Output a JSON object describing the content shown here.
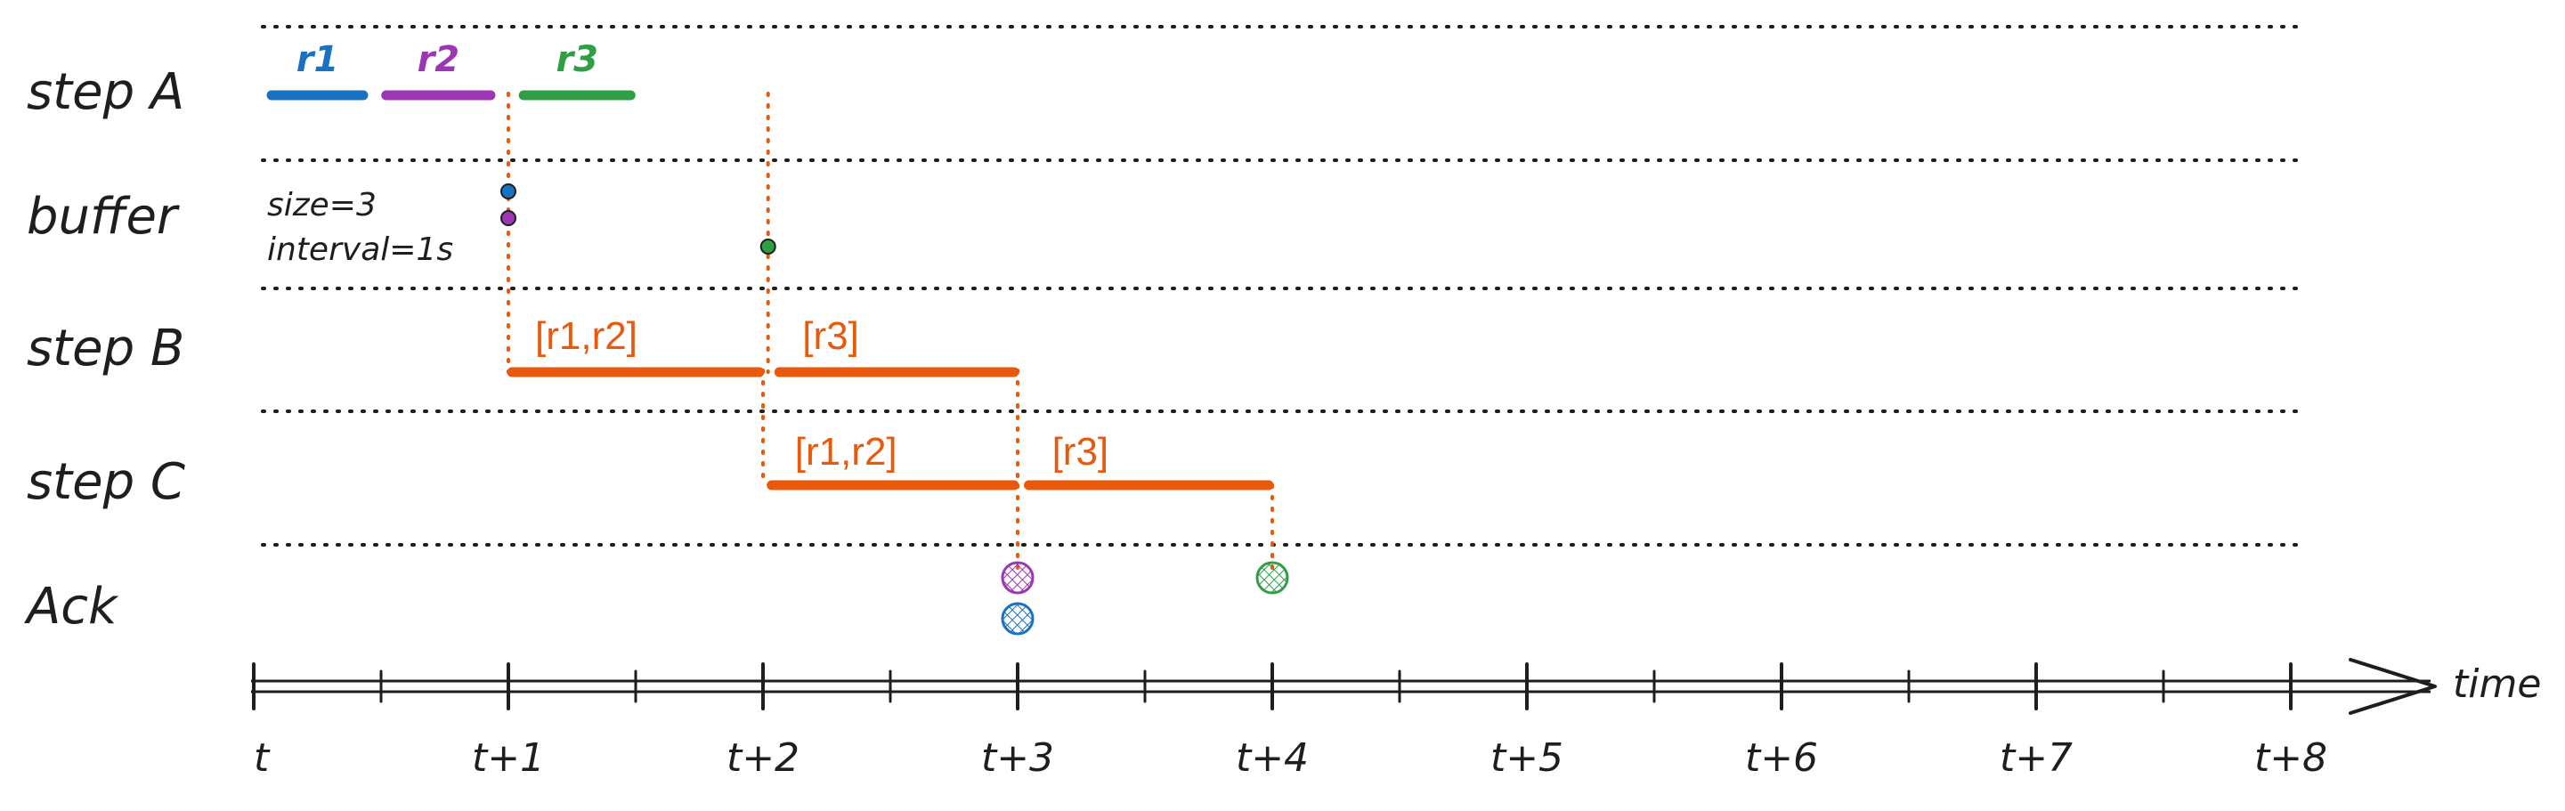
{
  "lanes": [
    {
      "id": "stepA",
      "label": "step A"
    },
    {
      "id": "buffer",
      "label": "buffer"
    },
    {
      "id": "stepB",
      "label": "step B"
    },
    {
      "id": "stepC",
      "label": "step C"
    },
    {
      "id": "ack",
      "label": "Ack"
    }
  ],
  "buffer_note": {
    "line1": "size=3",
    "line2": "interval=1s"
  },
  "colors": {
    "r1": "#1971c2",
    "r2": "#9c36b5",
    "r3": "#2f9e44",
    "batch": "#e8590c",
    "ink": "#1e1e1e"
  },
  "axis": {
    "title": "time",
    "ticks": [
      "t",
      "t+1",
      "t+2",
      "t+3",
      "t+4",
      "t+5",
      "t+6",
      "t+7",
      "t+8"
    ]
  },
  "step_a": [
    {
      "label": "r1",
      "start": 0.07,
      "end": 0.43,
      "color_key": "r1"
    },
    {
      "label": "r2",
      "start": 0.52,
      "end": 0.93,
      "color_key": "r2"
    },
    {
      "label": "r3",
      "start": 1.06,
      "end": 1.48,
      "color_key": "r3"
    }
  ],
  "buffer_dots": [
    {
      "t": 1.0,
      "level": 0,
      "color_key": "r1"
    },
    {
      "t": 1.0,
      "level": 1,
      "color_key": "r2"
    },
    {
      "t": 2.02,
      "level": 2,
      "color_key": "r3"
    }
  ],
  "step_b": [
    {
      "label": "[r1,r2]",
      "start": 1.0,
      "end": 2.0
    },
    {
      "label": "[r3]",
      "start": 2.05,
      "end": 3.0
    }
  ],
  "step_c": [
    {
      "label": "[r1,r2]",
      "start": 2.02,
      "end": 3.0
    },
    {
      "label": "[r3]",
      "start": 3.03,
      "end": 4.0
    }
  ],
  "acks": [
    {
      "t": 3.0,
      "level": 0,
      "color_key": "r2"
    },
    {
      "t": 3.0,
      "level": 1,
      "color_key": "r1"
    },
    {
      "t": 4.0,
      "level": 0,
      "color_key": "r3"
    }
  ],
  "connectors": [
    {
      "t": 1.0,
      "from_lane": "stepA",
      "to_lane": "stepB"
    },
    {
      "t": 2.02,
      "from_lane": "stepA",
      "to_lane": "stepB"
    },
    {
      "t": 2.0,
      "from_lane": "stepB",
      "to_lane": "stepC"
    },
    {
      "t": 3.0,
      "from_lane": "stepB",
      "to_lane": "stepC"
    },
    {
      "t": 3.0,
      "from_lane": "stepC",
      "to_lane": "ack"
    },
    {
      "t": 4.0,
      "from_lane": "stepC",
      "to_lane": "ack"
    }
  ]
}
